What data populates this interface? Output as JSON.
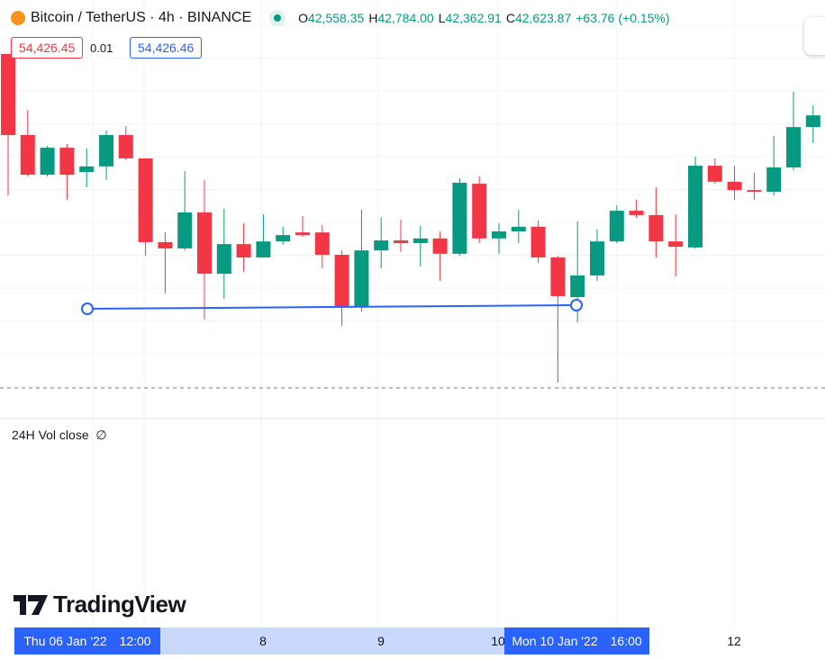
{
  "header": {
    "symbol": "Bitcoin / TetherUS · 4h · BINANCE",
    "ohlc": [
      {
        "key": "O",
        "value": "42,558.35"
      },
      {
        "key": "H",
        "value": "42,784.00"
      },
      {
        "key": "L",
        "value": "42,362.91"
      },
      {
        "key": "C",
        "value": "42,623.87"
      }
    ],
    "change": "+63.76 (+0.15%)"
  },
  "drawing_labels": [
    "54,426.45",
    "0.01",
    "54,426.46"
  ],
  "chart_data": {
    "type": "candlestick",
    "open": [
      43288,
      43045,
      42926,
      43007,
      42934,
      42951,
      43045,
      42975,
      42724,
      42705,
      42813,
      42629,
      42718,
      42678,
      42726,
      42753,
      42753,
      42686,
      42532,
      42699,
      42729,
      42721,
      42735,
      42689,
      42899,
      42735,
      42756,
      42770,
      42678,
      42559,
      42624,
      42726,
      42818,
      42805,
      42726,
      42708,
      42953,
      42905,
      42880,
      42875,
      42948,
      43069
    ],
    "high": [
      43288,
      43121,
      43013,
      43018,
      43005,
      43059,
      43072,
      42975,
      42753,
      42937,
      42910,
      42824,
      42780,
      42807,
      42770,
      42802,
      42775,
      42699,
      42821,
      42797,
      42791,
      42772,
      42756,
      42915,
      42921,
      42780,
      42821,
      42789,
      42683,
      42786,
      42762,
      42834,
      42851,
      42888,
      42807,
      42980,
      42975,
      42953,
      42932,
      43042,
      43175,
      43134
    ],
    "low": [
      42864,
      42921,
      42921,
      42851,
      42888,
      42910,
      42969,
      42683,
      42570,
      42699,
      42492,
      42554,
      42635,
      42678,
      42716,
      42740,
      42645,
      42473,
      42516,
      42645,
      42694,
      42651,
      42608,
      42683,
      42721,
      42689,
      42721,
      42662,
      42303,
      42483,
      42608,
      42721,
      42797,
      42678,
      42621,
      42705,
      42899,
      42851,
      42851,
      42864,
      42940,
      43021
    ],
    "close": [
      43045,
      42926,
      43007,
      42926,
      42951,
      43045,
      42975,
      42724,
      42705,
      42813,
      42629,
      42718,
      42678,
      42726,
      42745,
      42745,
      42686,
      42532,
      42699,
      42729,
      42721,
      42735,
      42689,
      42902,
      42735,
      42756,
      42770,
      42678,
      42562,
      42624,
      42726,
      42818,
      42805,
      42726,
      42710,
      42953,
      42905,
      42880,
      42875,
      42948,
      43069,
      43104
    ],
    "ylim": [
      42200,
      43450
    ],
    "up_color": "#089981",
    "down_color": "#f23645"
  },
  "indicator": {
    "name": "24H Vol close",
    "value": "∅"
  },
  "logo": "TradingView",
  "time_axis": {
    "labels": [
      "8",
      "9",
      "10",
      "12"
    ],
    "start_date": "Thu 06 Jan '22",
    "start_time": "12:00",
    "end_date": "Mon 10 Jan '22",
    "end_time": "16:00"
  }
}
